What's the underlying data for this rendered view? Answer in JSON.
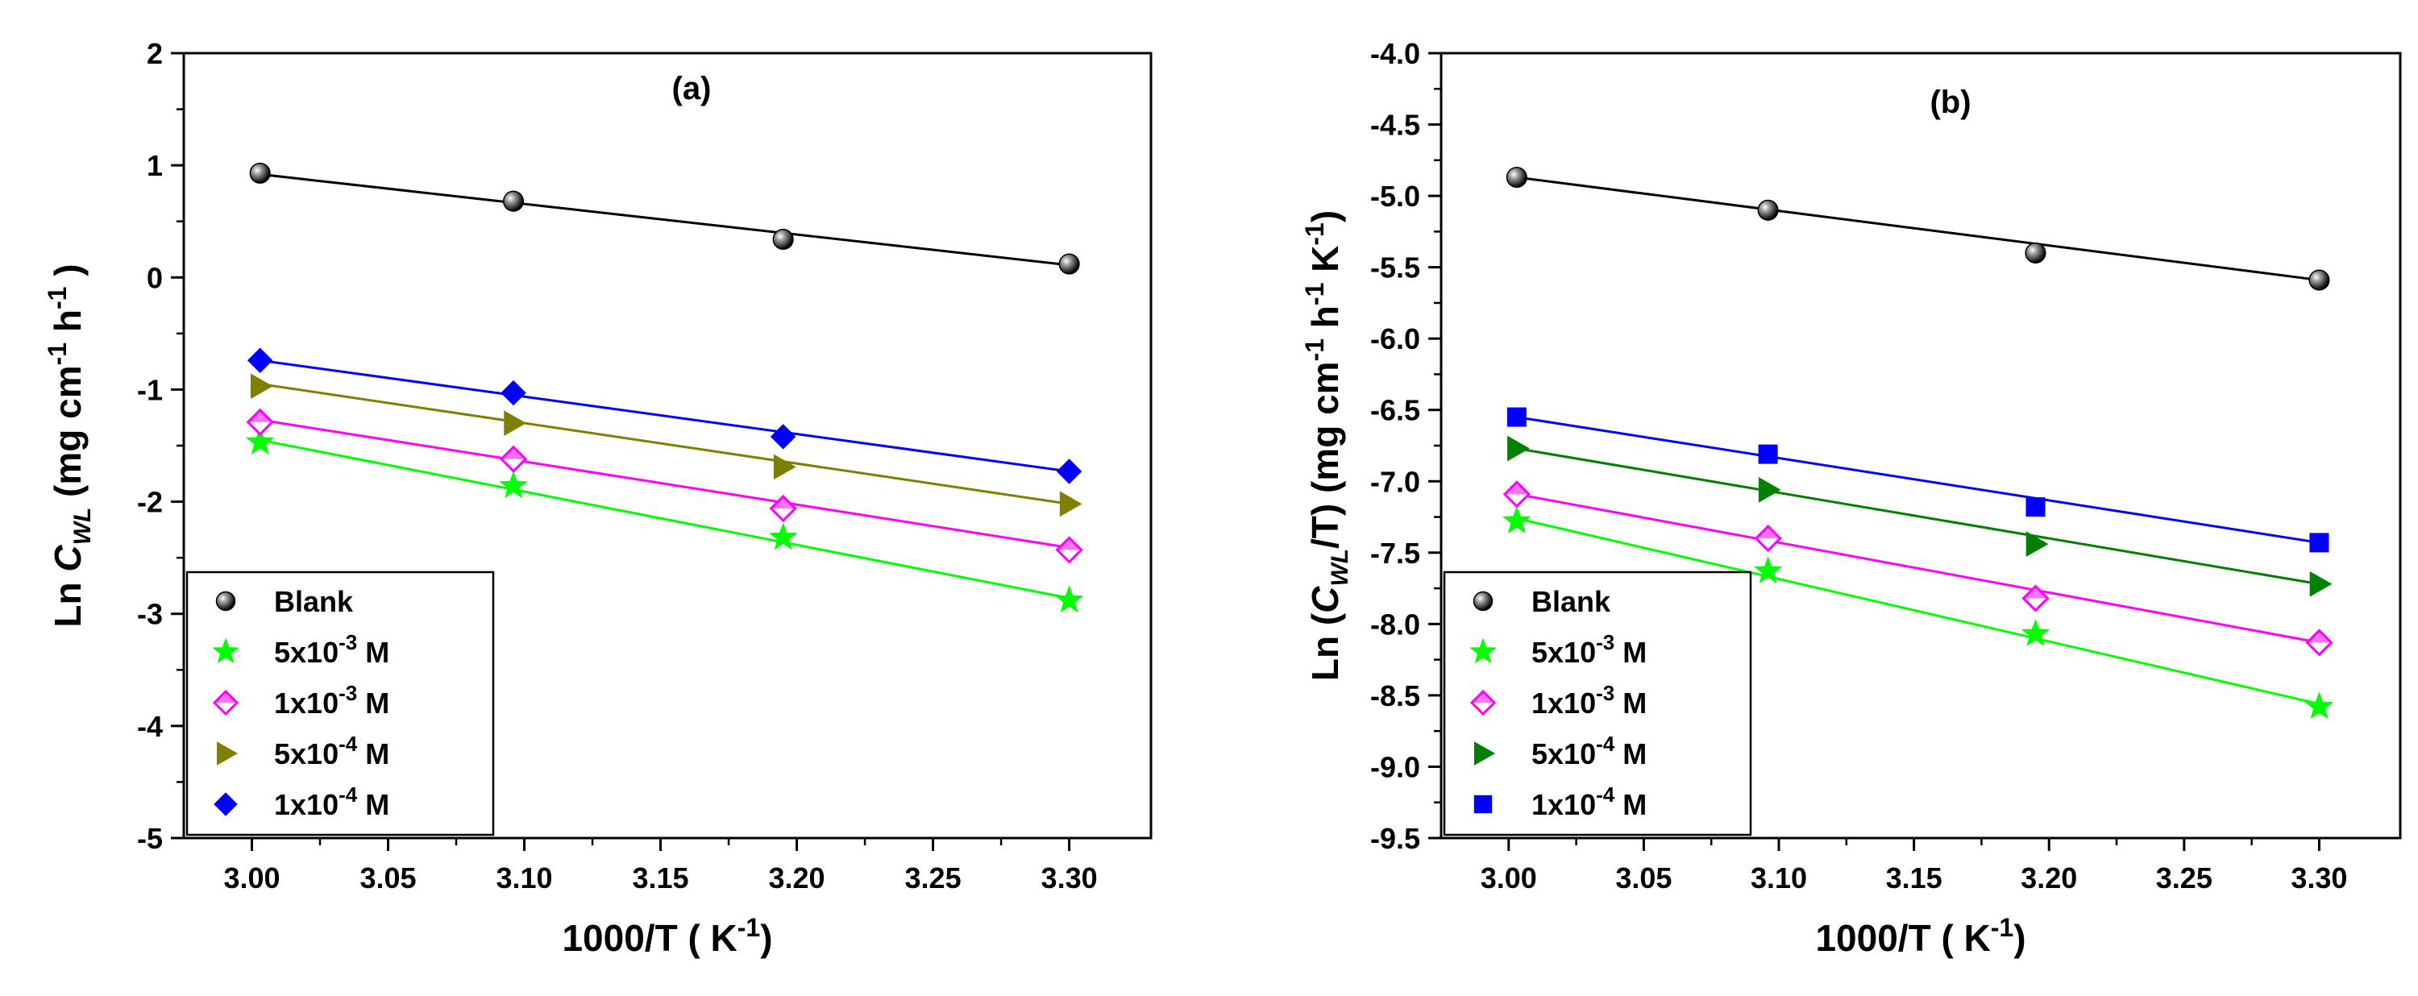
{
  "chart_data": [
    {
      "type": "scatter",
      "panel_label": "(a)",
      "xlabel": {
        "main": "1000/T ( K",
        "sup": "-1",
        "close": ")"
      },
      "ylabel": {
        "prefix": "Ln ",
        "c": "C",
        "sub": "WL",
        "unit1": " (mg cm",
        "sup1": "-1",
        "unit2": " h",
        "sup2": "-1",
        "close": " )"
      },
      "xlim": [
        2.975,
        3.33
      ],
      "ylim": [
        -5,
        2
      ],
      "xticks": [
        "3.00",
        "3.05",
        "3.10",
        "3.15",
        "3.20",
        "3.25",
        "3.30"
      ],
      "yticks": [
        "2",
        "1",
        "0",
        "-1",
        "-2",
        "-3",
        "-4",
        "-5"
      ],
      "x": [
        3.003,
        3.096,
        3.195,
        3.3
      ],
      "series": [
        {
          "name": "Blank",
          "base": "Blank",
          "sup": "",
          "unit": "",
          "marker": "sphere",
          "color": "#000000",
          "values": [
            0.93,
            0.68,
            0.34,
            0.12
          ],
          "fit": [
            0.92,
            0.11
          ]
        },
        {
          "name": "5x10-3 M",
          "base": "5x10",
          "sup": "-3",
          "unit": " M",
          "marker": "star",
          "color": "#00ff00",
          "values": [
            -1.47,
            -1.86,
            -2.32,
            -2.88
          ],
          "fit": [
            -1.45,
            -2.86
          ]
        },
        {
          "name": "1x10-3 M",
          "base": "1x10",
          "sup": "-3",
          "unit": " M",
          "marker": "diamond-open",
          "color": "#ff00ff",
          "values": [
            -1.29,
            -1.62,
            -2.06,
            -2.43
          ],
          "fit": [
            -1.27,
            -2.41
          ]
        },
        {
          "name": "5x10-4 M",
          "base": "5x10",
          "sup": "-4",
          "unit": " M",
          "marker": "triangle-right",
          "color": "#808000",
          "values": [
            -0.97,
            -1.3,
            -1.69,
            -2.02
          ],
          "fit": [
            -0.95,
            -2.02
          ]
        },
        {
          "name": "1x10-4 M",
          "base": "1x10",
          "sup": "-4",
          "unit": " M",
          "marker": "diamond",
          "color": "#0000ff",
          "values": [
            -0.74,
            -1.03,
            -1.42,
            -1.73
          ],
          "fit": [
            -0.74,
            -1.73
          ]
        }
      ],
      "legend_position": "bottom-left"
    },
    {
      "type": "scatter",
      "panel_label": "(b)",
      "xlabel": {
        "main": "1000/T ( K",
        "sup": "-1",
        "close": ")"
      },
      "ylabel": {
        "prefix": "Ln (",
        "c": "C",
        "sub": "WL",
        "slash": "/T) (mg cm",
        "sup1": "-1",
        "unit2": " h",
        "sup2": "-1",
        "unit3": " K",
        "sup3": "-1",
        "close": ")"
      },
      "xlim": [
        2.975,
        3.33
      ],
      "ylim": [
        -9.5,
        -4.0
      ],
      "xticks": [
        "3.00",
        "3.05",
        "3.10",
        "3.15",
        "3.20",
        "3.25",
        "3.30"
      ],
      "yticks": [
        "-4.0",
        "-4.5",
        "-5.0",
        "-5.5",
        "-6.0",
        "-6.5",
        "-7.0",
        "-7.5",
        "-8.0",
        "-8.5",
        "-9.0",
        "-9.5"
      ],
      "x": [
        3.003,
        3.096,
        3.195,
        3.3
      ],
      "series": [
        {
          "name": "Blank",
          "base": "Blank",
          "sup": "",
          "unit": "",
          "marker": "sphere",
          "color": "#000000",
          "values": [
            -4.87,
            -5.1,
            -5.4,
            -5.59
          ],
          "fit": [
            -4.87,
            -5.59
          ]
        },
        {
          "name": "5x10-3 M",
          "base": "5x10",
          "sup": "-3",
          "unit": " M",
          "marker": "star",
          "color": "#00ff00",
          "values": [
            -7.28,
            -7.63,
            -8.07,
            -8.58
          ],
          "fit": [
            -7.26,
            -8.56
          ]
        },
        {
          "name": "1x10-3 M",
          "base": "1x10",
          "sup": "-3",
          "unit": " M",
          "marker": "diamond-open",
          "color": "#ff00ff",
          "values": [
            -7.09,
            -7.4,
            -7.82,
            -8.13
          ],
          "fit": [
            -7.09,
            -8.13
          ]
        },
        {
          "name": "5x10-4 M",
          "base": "5x10",
          "sup": "-4",
          "unit": " M",
          "marker": "triangle-right",
          "color": "#008000",
          "values": [
            -6.77,
            -7.06,
            -7.44,
            -7.72
          ],
          "fit": [
            -6.77,
            -7.72
          ]
        },
        {
          "name": "1x10-4 M",
          "base": "1x10",
          "sup": "-4",
          "unit": " M",
          "marker": "square",
          "color": "#0000ff",
          "values": [
            -6.55,
            -6.81,
            -7.18,
            -7.43
          ],
          "fit": [
            -6.55,
            -7.43
          ]
        }
      ],
      "legend_position": "bottom-left"
    }
  ]
}
